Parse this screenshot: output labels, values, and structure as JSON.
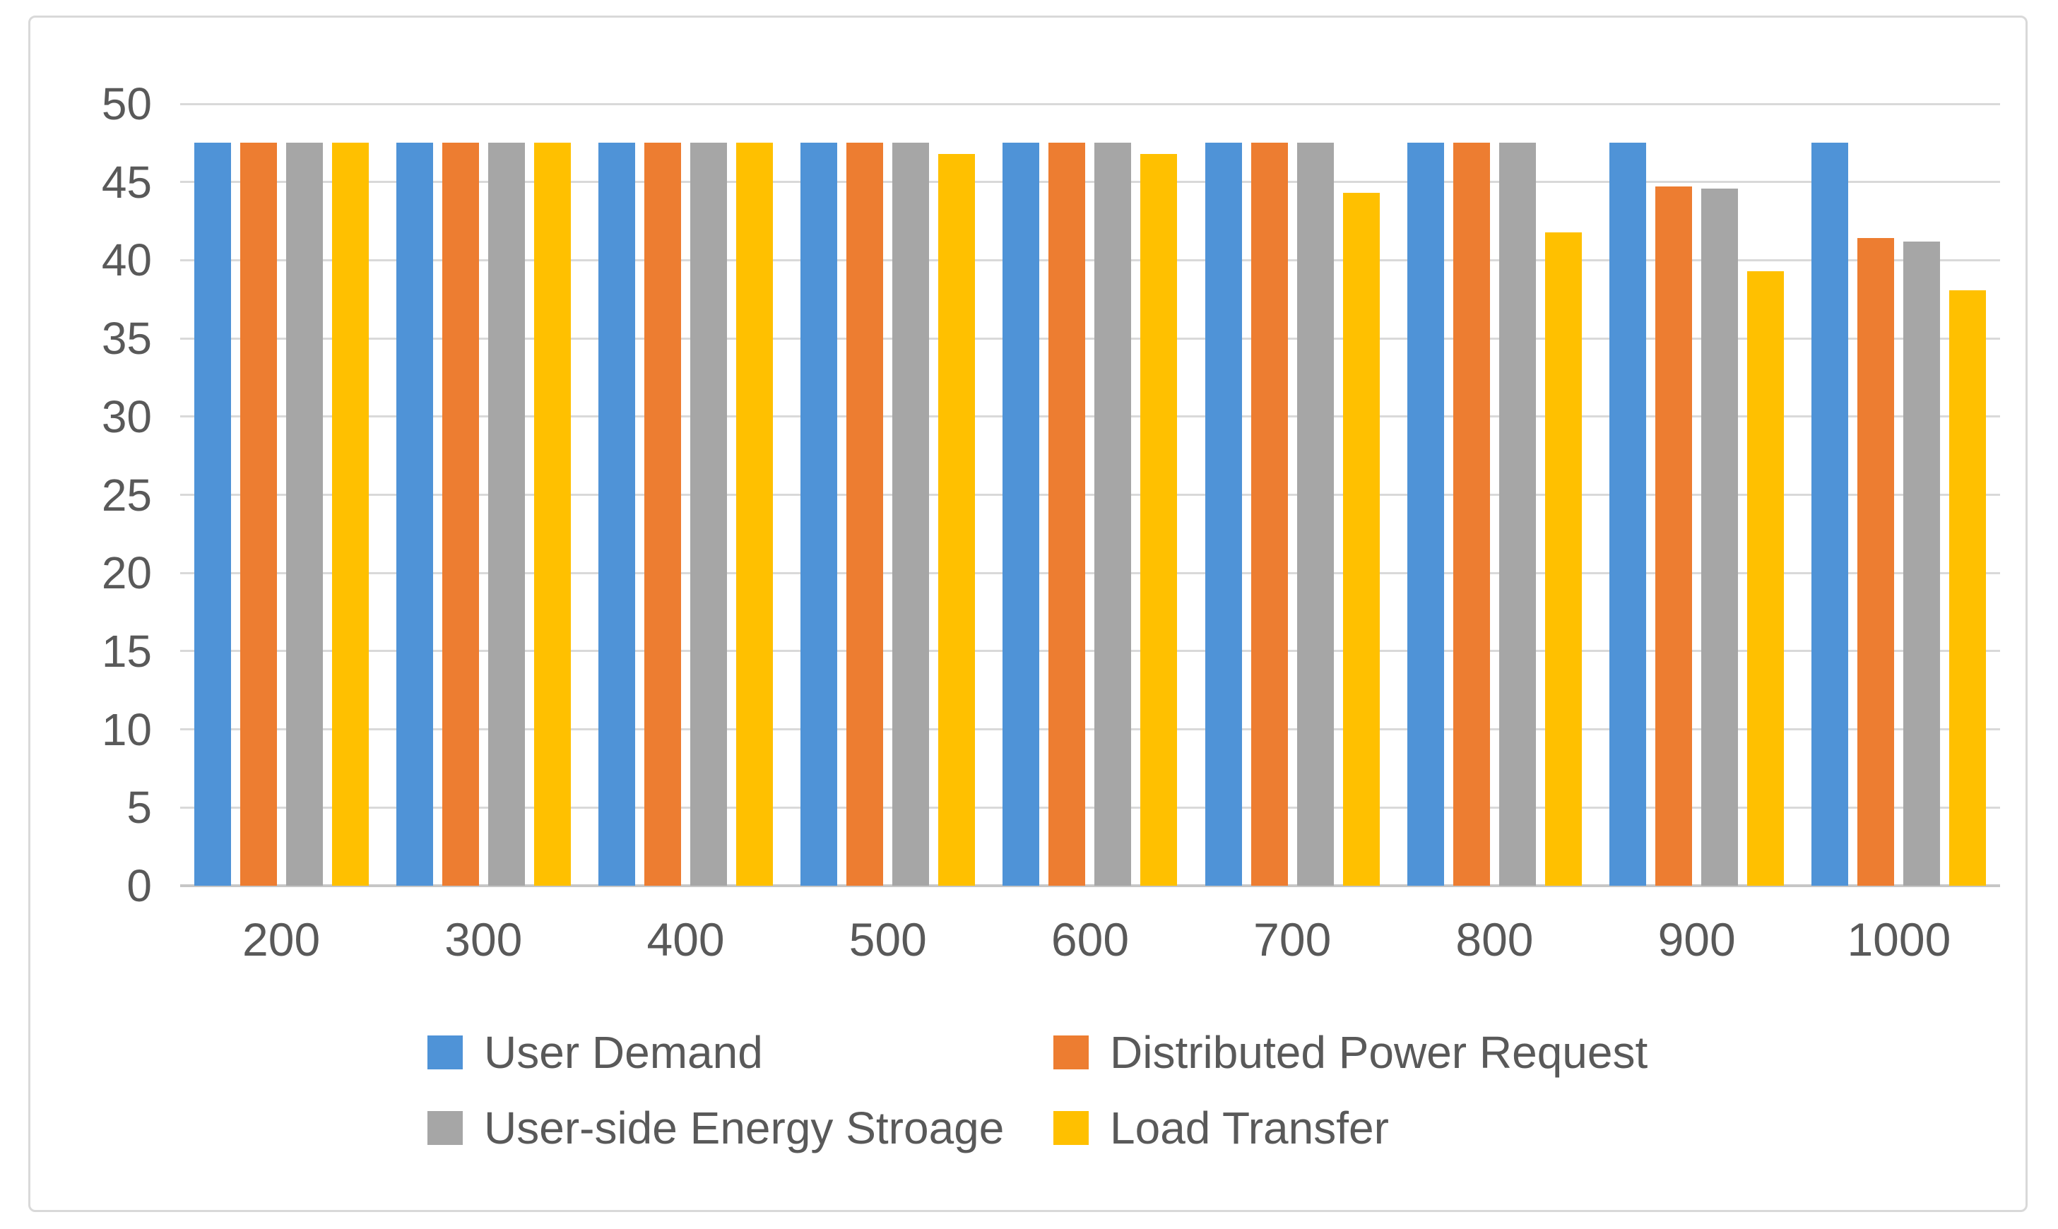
{
  "chart_data": {
    "type": "bar",
    "title": "",
    "categories": [
      "200",
      "300",
      "400",
      "500",
      "600",
      "700",
      "800",
      "900",
      "1000"
    ],
    "series": [
      {
        "name": "User Demand",
        "color": "#4F93D7",
        "values": [
          47.5,
          47.5,
          47.5,
          47.5,
          47.5,
          47.5,
          47.5,
          47.5,
          47.5
        ]
      },
      {
        "name": "Distributed Power Request",
        "color": "#ED7D31",
        "values": [
          47.5,
          47.5,
          47.5,
          47.5,
          47.5,
          47.5,
          47.5,
          44.7,
          41.4
        ]
      },
      {
        "name": "User-side Energy Stroage",
        "color": "#A6A6A6",
        "values": [
          47.5,
          47.5,
          47.5,
          47.5,
          47.5,
          47.5,
          47.5,
          44.6,
          41.2
        ]
      },
      {
        "name": "Load Transfer",
        "color": "#FFC000",
        "values": [
          47.5,
          47.5,
          47.5,
          46.8,
          46.8,
          44.3,
          41.8,
          39.3,
          38.1
        ]
      }
    ],
    "ylim": [
      0,
      50
    ],
    "yticks": [
      0,
      5,
      10,
      15,
      20,
      25,
      30,
      35,
      40,
      45,
      50
    ],
    "xlabel": "",
    "ylabel": "",
    "grid": "horizontal",
    "legend_position": "bottom",
    "legend_columns": 2
  },
  "style": {
    "gridline_color": "#D9D9D9",
    "axis_line_color": "#C6C6C6",
    "tick_label_color": "#595959",
    "frame_border_color": "#D9D9D9",
    "background_color": "#FFFFFF"
  }
}
